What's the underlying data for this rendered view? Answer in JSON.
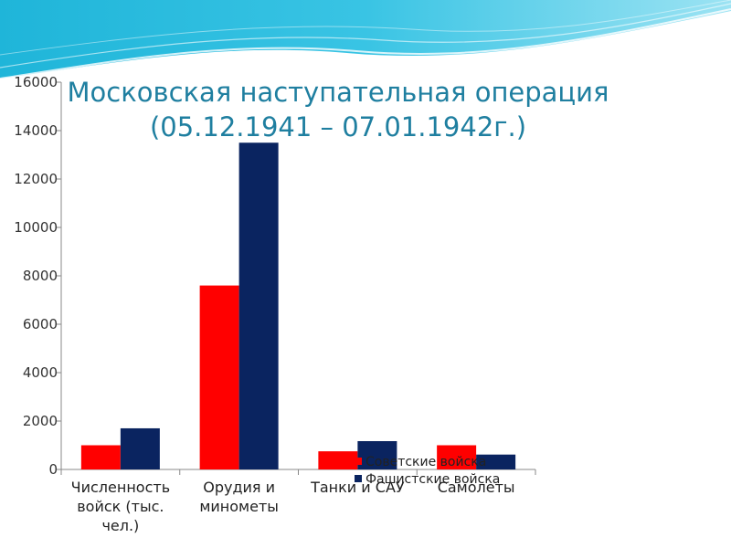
{
  "chart_data": {
    "type": "bar",
    "title_lines": [
      "Московская наступательная операция",
      "(05.12.1941 – 07.01.1942г.)"
    ],
    "categories": [
      [
        "Численность",
        "войск (тыс.",
        "чел.)"
      ],
      [
        "Орудия и",
        "минометы"
      ],
      [
        "Танки и САУ"
      ],
      [
        "Самолеты"
      ]
    ],
    "series": [
      {
        "name": "Советские войска",
        "color": "#FF0000",
        "values": [
          1000,
          7600,
          750,
          1000
        ]
      },
      {
        "name": "Фашистские войска",
        "color": "#0A2460",
        "values": [
          1700,
          13500,
          1170,
          615
        ]
      }
    ],
    "ylim": [
      0,
      16000
    ],
    "yticks": [
      0,
      2000,
      4000,
      6000,
      8000,
      10000,
      12000,
      14000,
      16000
    ],
    "grid": false,
    "legend_position": "bottom-right"
  }
}
